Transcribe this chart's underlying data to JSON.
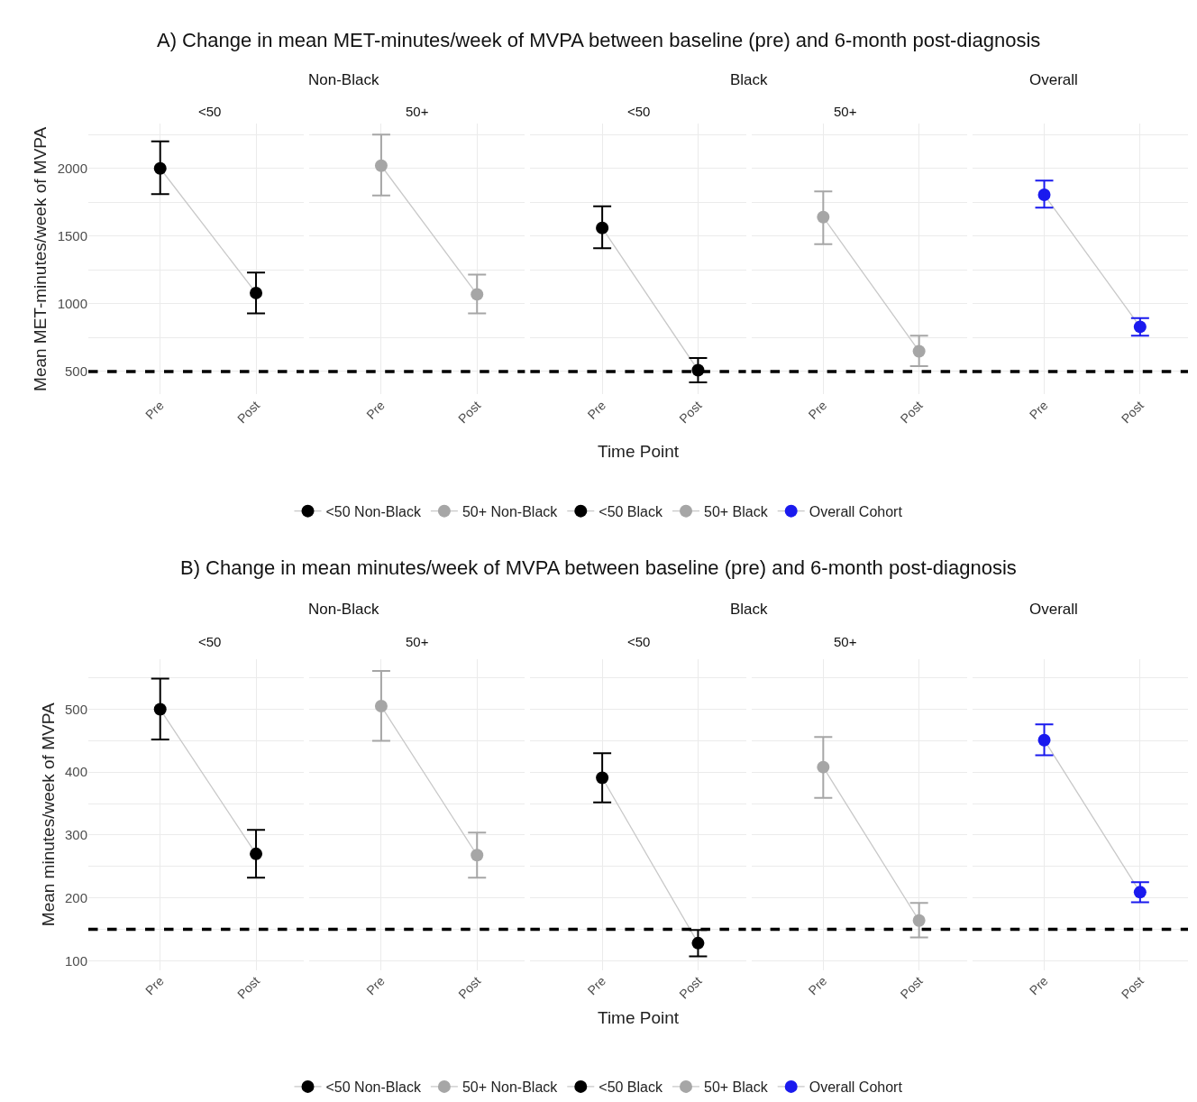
{
  "chart_data": [
    {
      "type": "line",
      "title": "<50",
      "annotations": [
        "A) Change in mean MET-minutes/week of MVPA between baseline (pre) and 6-month post-diagnosis",
        "Non-Black"
      ],
      "ylabel": "Mean MET-minutes/week of MVPA",
      "categories": [
        "Pre",
        "Post"
      ],
      "series": [
        {
          "name": "<50 Non-Black",
          "color": "#c8c8c8",
          "colors": [
            "#000000",
            "#000000"
          ],
          "values": [
            2000,
            1080
          ],
          "errors": [
            [
              1810,
              2200
            ],
            [
              930,
              1230
            ]
          ]
        }
      ],
      "ylim": [
        330,
        2330
      ],
      "yticks": [
        500,
        {
          "value": 750,
          "label": null
        },
        1000,
        {
          "value": 1250,
          "label": null
        },
        1500,
        {
          "value": 1750,
          "label": null
        },
        2000,
        {
          "value": 2250,
          "label": null
        }
      ],
      "grid": true,
      "legend": "bottom",
      "marker": "circle",
      "line_style": "solid",
      "ref_lines": [
        {
          "axis": "y",
          "value": 500,
          "color": "#000000",
          "line_style": "dashed"
        }
      ]
    },
    {
      "type": "line",
      "title": "50+",
      "categories": [
        "Pre",
        "Post"
      ],
      "series": [
        {
          "name": "50+ Non-Black",
          "color": "#c8c8c8",
          "colors": [
            "#a6a6a6",
            "#a6a6a6"
          ],
          "values": [
            2020,
            1070
          ],
          "errors": [
            [
              1800,
              2250
            ],
            [
              930,
              1215
            ]
          ]
        }
      ],
      "ylim": [
        330,
        2330
      ],
      "yticks": [
        500,
        {
          "value": 750,
          "label": null
        },
        1000,
        {
          "value": 1250,
          "label": null
        },
        1500,
        {
          "value": 1750,
          "label": null
        },
        2000,
        {
          "value": 2250,
          "label": null
        }
      ],
      "tick_labels": "x",
      "grid": true,
      "legend": "bottom",
      "marker": "circle",
      "line_style": "solid",
      "ref_lines": [
        {
          "axis": "y",
          "value": 500,
          "color": "#000000",
          "line_style": "dashed"
        }
      ]
    },
    {
      "type": "line",
      "title": "<50",
      "annotations": [
        "Black"
      ],
      "xlabel": "Time Point",
      "categories": [
        "Pre",
        "Post"
      ],
      "series": [
        {
          "name": "<50 Black",
          "color": "#c8c8c8",
          "colors": [
            "#000000",
            "#000000"
          ],
          "values": [
            1560,
            510
          ],
          "errors": [
            [
              1410,
              1720
            ],
            [
              420,
              600
            ]
          ]
        }
      ],
      "ylim": [
        330,
        2330
      ],
      "yticks": [
        500,
        {
          "value": 750,
          "label": null
        },
        1000,
        {
          "value": 1250,
          "label": null
        },
        1500,
        {
          "value": 1750,
          "label": null
        },
        2000,
        {
          "value": 2250,
          "label": null
        }
      ],
      "tick_labels": "x",
      "grid": true,
      "legend": "bottom",
      "marker": "circle",
      "line_style": "solid",
      "ref_lines": [
        {
          "axis": "y",
          "value": 500,
          "color": "#000000",
          "line_style": "dashed"
        }
      ]
    },
    {
      "type": "line",
      "title": "50+",
      "categories": [
        "Pre",
        "Post"
      ],
      "series": [
        {
          "name": "50+ Black",
          "color": "#c8c8c8",
          "colors": [
            "#a6a6a6",
            "#a6a6a6"
          ],
          "values": [
            1640,
            650
          ],
          "errors": [
            [
              1440,
              1830
            ],
            [
              540,
              765
            ]
          ]
        }
      ],
      "ylim": [
        330,
        2330
      ],
      "yticks": [
        500,
        {
          "value": 750,
          "label": null
        },
        1000,
        {
          "value": 1250,
          "label": null
        },
        1500,
        {
          "value": 1750,
          "label": null
        },
        2000,
        {
          "value": 2250,
          "label": null
        }
      ],
      "tick_labels": "x",
      "grid": true,
      "legend": "bottom",
      "marker": "circle",
      "line_style": "solid",
      "ref_lines": [
        {
          "axis": "y",
          "value": 500,
          "color": "#000000",
          "line_style": "dashed"
        }
      ]
    },
    {
      "type": "line",
      "title": "Overall",
      "categories": [
        "Pre",
        "Post"
      ],
      "series": [
        {
          "name": "Overall Cohort",
          "color": "#c8c8c8",
          "colors": [
            "#1a1aee",
            "#1a1aee"
          ],
          "values": [
            1805,
            830
          ],
          "errors": [
            [
              1710,
              1910
            ],
            [
              765,
              895
            ]
          ]
        }
      ],
      "ylim": [
        330,
        2330
      ],
      "yticks": [
        500,
        {
          "value": 750,
          "label": null
        },
        1000,
        {
          "value": 1250,
          "label": null
        },
        1500,
        {
          "value": 1750,
          "label": null
        },
        2000,
        {
          "value": 2250,
          "label": null
        }
      ],
      "tick_labels": "x",
      "grid": true,
      "legend": "bottom",
      "marker": "circle",
      "line_style": "solid",
      "ref_lines": [
        {
          "axis": "y",
          "value": 500,
          "color": "#000000",
          "line_style": "dashed"
        }
      ]
    },
    {
      "type": "line",
      "title": "<50",
      "annotations": [
        "B) Change in mean minutes/week of MVPA between baseline (pre) and 6-month post-diagnosis",
        "Non-Black"
      ],
      "ylabel": "Mean minutes/week of MVPA",
      "categories": [
        "Pre",
        "Post"
      ],
      "series": [
        {
          "name": "<50 Non-Black",
          "color": "#c8c8c8",
          "colors": [
            "#000000",
            "#000000"
          ],
          "values": [
            500,
            270
          ],
          "errors": [
            [
              452,
              549
            ],
            [
              232,
              308
            ]
          ]
        }
      ],
      "ylim": [
        85,
        580
      ],
      "yticks": [
        100,
        {
          "value": 150,
          "label": null
        },
        200,
        {
          "value": 250,
          "label": null
        },
        300,
        {
          "value": 350,
          "label": null
        },
        400,
        {
          "value": 450,
          "label": null
        },
        500,
        {
          "value": 550,
          "label": null
        }
      ],
      "grid": true,
      "legend": "bottom",
      "marker": "circle",
      "line_style": "solid",
      "ref_lines": [
        {
          "axis": "y",
          "value": 150,
          "color": "#000000",
          "line_style": "dashed"
        }
      ]
    },
    {
      "type": "line",
      "title": "50+",
      "categories": [
        "Pre",
        "Post"
      ],
      "series": [
        {
          "name": "50+ Non-Black",
          "color": "#c8c8c8",
          "colors": [
            "#a6a6a6",
            "#a6a6a6"
          ],
          "values": [
            505,
            268
          ],
          "errors": [
            [
              450,
              561
            ],
            [
              232,
              304
            ]
          ]
        }
      ],
      "ylim": [
        85,
        580
      ],
      "yticks": [
        100,
        {
          "value": 150,
          "label": null
        },
        200,
        {
          "value": 250,
          "label": null
        },
        300,
        {
          "value": 350,
          "label": null
        },
        400,
        {
          "value": 450,
          "label": null
        },
        500,
        {
          "value": 550,
          "label": null
        }
      ],
      "tick_labels": "x",
      "grid": true,
      "legend": "bottom",
      "marker": "circle",
      "line_style": "solid",
      "ref_lines": [
        {
          "axis": "y",
          "value": 150,
          "color": "#000000",
          "line_style": "dashed"
        }
      ]
    },
    {
      "type": "line",
      "title": "<50",
      "annotations": [
        "Black"
      ],
      "xlabel": "Time Point",
      "categories": [
        "Pre",
        "Post"
      ],
      "series": [
        {
          "name": "<50 Black",
          "color": "#c8c8c8",
          "colors": [
            "#000000",
            "#000000"
          ],
          "values": [
            391,
            128
          ],
          "errors": [
            [
              352,
              430
            ],
            [
              107,
              149
            ]
          ]
        }
      ],
      "ylim": [
        85,
        580
      ],
      "yticks": [
        100,
        {
          "value": 150,
          "label": null
        },
        200,
        {
          "value": 250,
          "label": null
        },
        300,
        {
          "value": 350,
          "label": null
        },
        400,
        {
          "value": 450,
          "label": null
        },
        500,
        {
          "value": 550,
          "label": null
        }
      ],
      "tick_labels": "x",
      "grid": true,
      "legend": "bottom",
      "marker": "circle",
      "line_style": "solid",
      "ref_lines": [
        {
          "axis": "y",
          "value": 150,
          "color": "#000000",
          "line_style": "dashed"
        }
      ]
    },
    {
      "type": "line",
      "title": "50+",
      "categories": [
        "Pre",
        "Post"
      ],
      "series": [
        {
          "name": "50+ Black",
          "color": "#c8c8c8",
          "colors": [
            "#a6a6a6",
            "#a6a6a6"
          ],
          "values": [
            408,
            164
          ],
          "errors": [
            [
              359,
              456
            ],
            [
              137,
              192
            ]
          ]
        }
      ],
      "ylim": [
        85,
        580
      ],
      "yticks": [
        100,
        {
          "value": 150,
          "label": null
        },
        200,
        {
          "value": 250,
          "label": null
        },
        300,
        {
          "value": 350,
          "label": null
        },
        400,
        {
          "value": 450,
          "label": null
        },
        500,
        {
          "value": 550,
          "label": null
        }
      ],
      "tick_labels": "x",
      "grid": true,
      "legend": "bottom",
      "marker": "circle",
      "line_style": "solid",
      "ref_lines": [
        {
          "axis": "y",
          "value": 150,
          "color": "#000000",
          "line_style": "dashed"
        }
      ]
    },
    {
      "type": "line",
      "title": "Overall",
      "categories": [
        "Pre",
        "Post"
      ],
      "series": [
        {
          "name": "Overall Cohort",
          "color": "#c8c8c8",
          "colors": [
            "#1a1aee",
            "#1a1aee"
          ],
          "values": [
            451,
            209
          ],
          "errors": [
            [
              427,
              476
            ],
            [
              193,
              225
            ]
          ]
        }
      ],
      "ylim": [
        85,
        580
      ],
      "yticks": [
        100,
        {
          "value": 150,
          "label": null
        },
        200,
        {
          "value": 250,
          "label": null
        },
        300,
        {
          "value": 350,
          "label": null
        },
        400,
        {
          "value": 450,
          "label": null
        },
        500,
        {
          "value": 550,
          "label": null
        }
      ],
      "tick_labels": "x",
      "grid": true,
      "legend": "bottom",
      "marker": "circle",
      "line_style": "solid",
      "ref_lines": [
        {
          "axis": "y",
          "value": 150,
          "color": "#000000",
          "line_style": "dashed"
        }
      ]
    }
  ]
}
